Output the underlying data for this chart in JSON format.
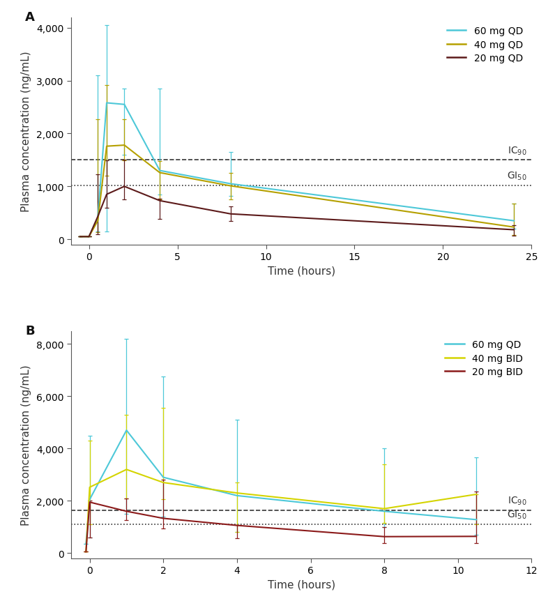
{
  "panel_A": {
    "title": "A",
    "xlabel": "Time (hours)",
    "ylabel": "Plasma concentration (ng/mL)",
    "xlim": [
      -1,
      25
    ],
    "ylim": [
      -100,
      4200
    ],
    "yticks": [
      0,
      1000,
      2000,
      3000,
      4000
    ],
    "xticks": [
      0,
      5,
      10,
      15,
      20,
      25
    ],
    "IC90": 1500,
    "GI50": 1020,
    "series": [
      {
        "label": "60 mg QD",
        "color": "#4DC8D8",
        "x": [
          -0.5,
          0.0,
          0.5,
          1.0,
          2.0,
          4.0,
          8.0,
          24.0
        ],
        "y": [
          50,
          50,
          400,
          2580,
          2550,
          1300,
          1050,
          350
        ],
        "y_lo": [
          50,
          50,
          150,
          150,
          1600,
          850,
          820,
          200
        ],
        "y_hi": [
          50,
          50,
          3100,
          4050,
          2850,
          2850,
          1650,
          680
        ]
      },
      {
        "label": "40 mg QD",
        "color": "#B5A000",
        "x": [
          -0.5,
          0.0,
          0.5,
          1.0,
          2.0,
          4.0,
          8.0,
          24.0
        ],
        "y": [
          50,
          50,
          350,
          1760,
          1780,
          1260,
          1010,
          230
        ],
        "y_lo": [
          50,
          50,
          130,
          1200,
          1490,
          750,
          750,
          80
        ],
        "y_hi": [
          50,
          50,
          2270,
          2910,
          2270,
          1480,
          1250,
          680
        ]
      },
      {
        "label": "20 mg QD",
        "color": "#5C1A1A",
        "x": [
          -0.5,
          0.0,
          0.5,
          1.0,
          2.0,
          4.0,
          8.0,
          24.0
        ],
        "y": [
          50,
          50,
          430,
          850,
          1000,
          730,
          480,
          180
        ],
        "y_lo": [
          50,
          50,
          100,
          600,
          760,
          390,
          350,
          70
        ],
        "y_hi": [
          50,
          50,
          1230,
          1490,
          1500,
          770,
          620,
          270
        ]
      }
    ]
  },
  "panel_B": {
    "title": "B",
    "xlabel": "Time (hours)",
    "ylabel": "Plasma concentration (ng/mL)",
    "xlim": [
      -0.5,
      12.0
    ],
    "ylim": [
      -200,
      8500
    ],
    "yticks": [
      0,
      2000,
      4000,
      6000,
      8000
    ],
    "xticks": [
      0,
      2,
      4,
      6,
      8,
      10,
      12
    ],
    "IC90": 1640,
    "GI50": 1100,
    "series": [
      {
        "label": "60 mg QD",
        "color": "#4DC8D8",
        "x": [
          -0.1,
          0.0,
          1.0,
          2.0,
          4.0,
          8.0,
          10.5
        ],
        "y": [
          350,
          2050,
          4700,
          2900,
          2200,
          1600,
          1280
        ],
        "y_lo": [
          350,
          600,
          1500,
          1400,
          800,
          1000,
          700
        ],
        "y_hi": [
          350,
          4500,
          8200,
          6750,
          5100,
          4000,
          3650
        ]
      },
      {
        "label": "40 mg BID",
        "color": "#D4D400",
        "x": [
          -0.1,
          0.0,
          1.0,
          2.0,
          4.0,
          8.0,
          10.5
        ],
        "y": [
          50,
          2520,
          3200,
          2700,
          2300,
          1700,
          2250
        ],
        "y_lo": [
          50,
          1100,
          2100,
          2050,
          800,
          1150,
          1100
        ],
        "y_hi": [
          50,
          4300,
          5300,
          5550,
          2700,
          3400,
          2250
        ]
      },
      {
        "label": "20 mg BID",
        "color": "#8B1A1A",
        "x": [
          -0.1,
          0.0,
          1.0,
          2.0,
          4.0,
          8.0,
          10.5
        ],
        "y": [
          50,
          1950,
          1600,
          1330,
          1060,
          630,
          640
        ],
        "y_lo": [
          50,
          600,
          1250,
          950,
          580,
          380,
          380
        ],
        "y_hi": [
          50,
          2000,
          2100,
          2800,
          1080,
          1000,
          2350
        ]
      }
    ]
  },
  "background_color": "#FFFFFF",
  "fontsize_label": 11,
  "fontsize_tick": 10,
  "fontsize_legend": 10,
  "fontsize_panel": 13
}
